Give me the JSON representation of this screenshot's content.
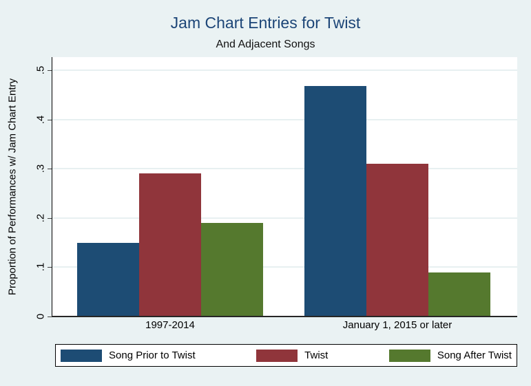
{
  "title": "Jam Chart Entries for Twist",
  "subtitle": "And Adjacent Songs",
  "colors": {
    "background": "#eaf2f3",
    "plot_background": "#ffffff",
    "gridline": "#e7f0f1",
    "title_text": "#1c4577",
    "axis_line": "#262626",
    "series_blue": "#1d4c74",
    "series_maroon": "#90353b",
    "series_green": "#55792e"
  },
  "chart_data": {
    "type": "bar",
    "title": "Jam Chart Entries for Twist",
    "subtitle": "And Adjacent Songs",
    "xlabel": "",
    "ylabel": "Proportion of Performances w/ Jam Chart Entry",
    "categories": [
      "1997-2014",
      "January 1, 2015 or later"
    ],
    "series": [
      {
        "name": "Song Prior to Twist",
        "color": "#1d4c74",
        "values": [
          0.15,
          0.468
        ]
      },
      {
        "name": "Twist",
        "color": "#90353b",
        "values": [
          0.29,
          0.31
        ]
      },
      {
        "name": "Song After Twist",
        "color": "#55792e",
        "values": [
          0.19,
          0.09
        ]
      }
    ],
    "yticks": [
      0,
      0.1,
      0.2,
      0.3,
      0.4,
      0.5
    ],
    "ytick_labels": [
      "0",
      ".1",
      ".2",
      ".3",
      ".4",
      ".5"
    ],
    "ylim": [
      0,
      0.526
    ],
    "grid": true,
    "legend_position": "bottom"
  }
}
